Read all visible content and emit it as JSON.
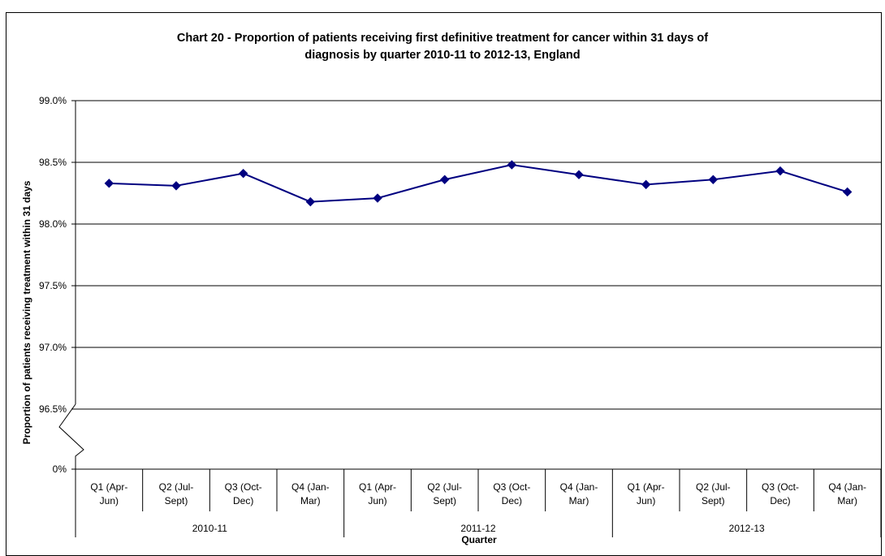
{
  "chart_data": {
    "type": "line",
    "title_lines": [
      "Chart 20 - Proportion of patients receiving first definitive treatment for cancer within 31 days of",
      "diagnosis by quarter 2010-11 to 2012-13, England"
    ],
    "xlabel": "Quarter",
    "ylabel": "Proportion of patients receiving treatment within 31 days",
    "y_ticks": [
      "99.0%",
      "98.5%",
      "98.0%",
      "97.5%",
      "97.0%",
      "96.5%",
      "0%"
    ],
    "ylim": [
      96.0,
      99.0
    ],
    "axis_break": true,
    "grid": true,
    "legend": "none",
    "line_color": "#000080",
    "categories": [
      [
        "Q1 (Apr-",
        "Jun)"
      ],
      [
        "Q2 (Jul-",
        "Sept)"
      ],
      [
        "Q3 (Oct-",
        "Dec)"
      ],
      [
        "Q4 (Jan-",
        "Mar)"
      ],
      [
        "Q1 (Apr-",
        "Jun)"
      ],
      [
        "Q2 (Jul-",
        "Sept)"
      ],
      [
        "Q3 (Oct-",
        "Dec)"
      ],
      [
        "Q4 (Jan-",
        "Mar)"
      ],
      [
        "Q1 (Apr-",
        "Jun)"
      ],
      [
        "Q2 (Jul-",
        "Sept)"
      ],
      [
        "Q3 (Oct-",
        "Dec)"
      ],
      [
        "Q4 (Jan-",
        "Mar)"
      ]
    ],
    "groups": [
      "2010-11",
      "2011-12",
      "2012-13"
    ],
    "values": [
      98.33,
      98.31,
      98.41,
      98.18,
      98.21,
      98.36,
      98.48,
      98.4,
      98.32,
      98.36,
      98.43,
      98.26
    ]
  }
}
